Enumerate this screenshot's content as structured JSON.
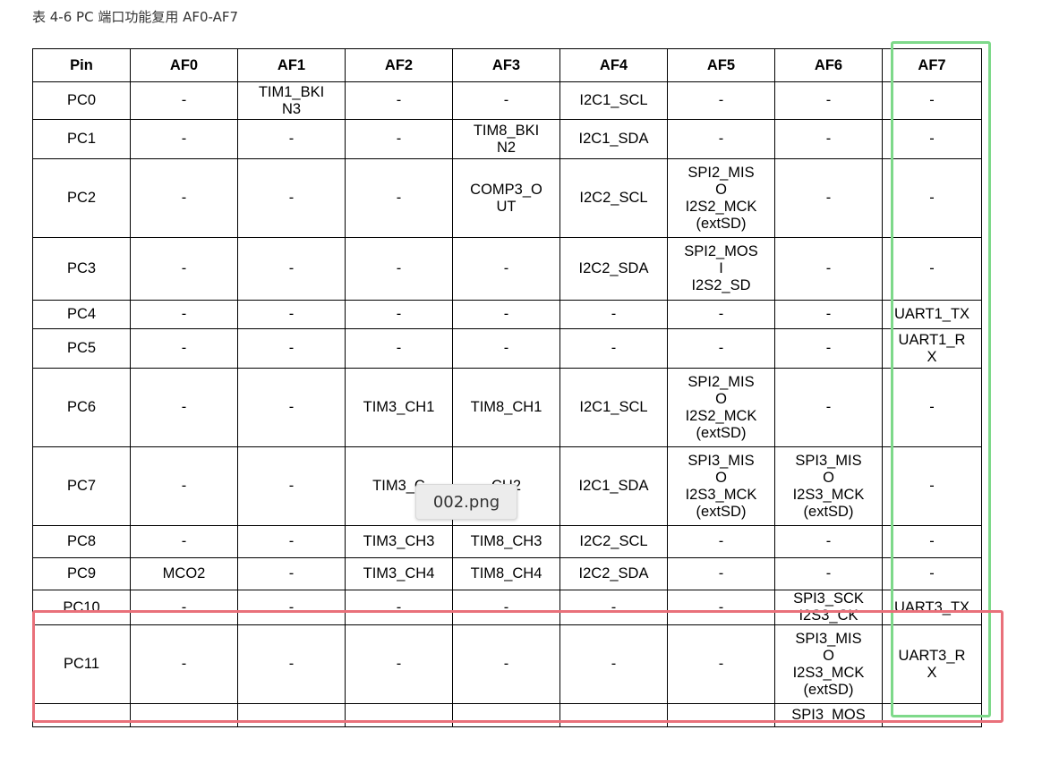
{
  "caption": "表 4-6 PC 端口功能复用 AF0-AF7",
  "table": {
    "headers": [
      "Pin",
      "AF0",
      "AF1",
      "AF2",
      "AF3",
      "AF4",
      "AF5",
      "AF6",
      "AF7"
    ],
    "rows": [
      [
        "PC0",
        "-",
        "TIM1_BKI\nN3",
        "-",
        "-",
        "I2C1_SCL",
        "-",
        "-",
        "-"
      ],
      [
        "PC1",
        "-",
        "-",
        "-",
        "TIM8_BKI\nN2",
        "I2C1_SDA",
        "-",
        "-",
        "-"
      ],
      [
        "PC2",
        "-",
        "-",
        "-",
        "COMP3_O\nUT",
        "I2C2_SCL",
        "SPI2_MIS\nO\nI2S2_MCK\n(extSD)",
        "-",
        "-"
      ],
      [
        "PC3",
        "-",
        "-",
        "-",
        "-",
        "I2C2_SDA",
        "SPI2_MOS\nI\nI2S2_SD",
        "-",
        "-"
      ],
      [
        "PC4",
        "-",
        "-",
        "-",
        "-",
        "-",
        "-",
        "-",
        "UART1_TX"
      ],
      [
        "PC5",
        "-",
        "-",
        "-",
        "-",
        "-",
        "-",
        "-",
        "UART1_R\nX"
      ],
      [
        "PC6",
        "-",
        "-",
        "TIM3_CH1",
        "TIM8_CH1",
        "I2C1_SCL",
        "SPI2_MIS\nO\nI2S2_MCK\n(extSD)",
        "-",
        "-"
      ],
      [
        "PC7",
        "-",
        "-",
        "TIM3_C",
        "CH2",
        "I2C1_SDA",
        "SPI3_MIS\nO\nI2S3_MCK\n(extSD)",
        "SPI3_MIS\nO\nI2S3_MCK\n(extSD)",
        "-"
      ],
      [
        "PC8",
        "-",
        "-",
        "TIM3_CH3",
        "TIM8_CH3",
        "I2C2_SCL",
        "-",
        "-",
        "-"
      ],
      [
        "PC9",
        "MCO2",
        "-",
        "TIM3_CH4",
        "TIM8_CH4",
        "I2C2_SDA",
        "-",
        "-",
        "-"
      ],
      [
        "PC10",
        "-",
        "-",
        "-",
        "-",
        "-",
        "-",
        "SPI3_SCK\nI2S3_CK",
        "UART3_TX"
      ],
      [
        "PC11",
        "-",
        "-",
        "-",
        "-",
        "-",
        "-",
        "SPI3_MIS\nO\nI2S3_MCK\n(extSD)",
        "UART3_R\nX"
      ],
      [
        "",
        "",
        "",
        "",
        "",
        "",
        "",
        "SPI3_MOS",
        ""
      ]
    ]
  },
  "tooltip": "002.png",
  "colors": {
    "green_highlight": "#7ed98a",
    "red_highlight": "#e9707a"
  }
}
